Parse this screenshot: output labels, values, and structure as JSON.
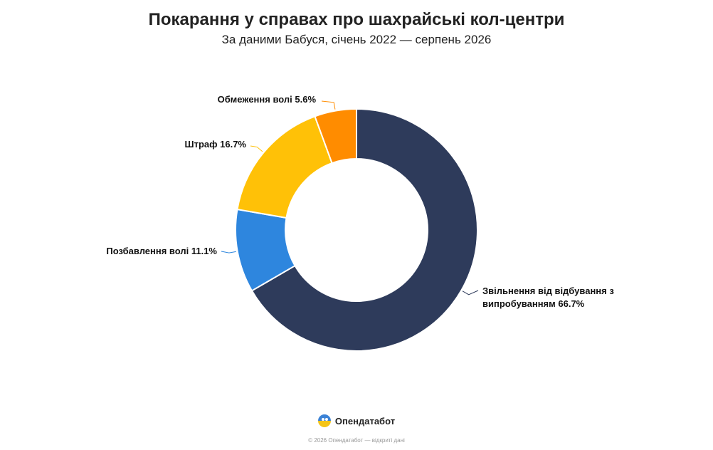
{
  "chart_data": {
    "type": "pie",
    "variant": "donut",
    "title": "Покарання у справах про шахрайські кол-центри",
    "subtitle": "За даними Бабуся, січень 2022 — серпень 2026",
    "slices": [
      {
        "label_lines": [
          "Звільнення від відбування з",
          "випробуванням 66.7%"
        ],
        "label": "Звільнення від відбування з випробуванням 66.7%",
        "value": 66.7,
        "color": "#2e3b5b"
      },
      {
        "label_lines": [
          "Позбавлення волі 11.1%"
        ],
        "label": "Позбавлення волі 11.1%",
        "value": 11.1,
        "color": "#2e86de"
      },
      {
        "label_lines": [
          "Штраф 16.7%"
        ],
        "label": "Штраф 16.7%",
        "value": 16.7,
        "color": "#ffc107"
      },
      {
        "label_lines": [
          "Обмеження волі 5.6%"
        ],
        "label": "Обмеження волі 5.6%",
        "value": 5.6,
        "color": "#ff8c00"
      }
    ],
    "start_angle_deg": 0,
    "direction": "clockwise",
    "legend": "none",
    "data_labels": "outside"
  },
  "branding": {
    "name": "Опендатабот",
    "footer": "© 2026 Опендатабот — відкриті дані"
  }
}
